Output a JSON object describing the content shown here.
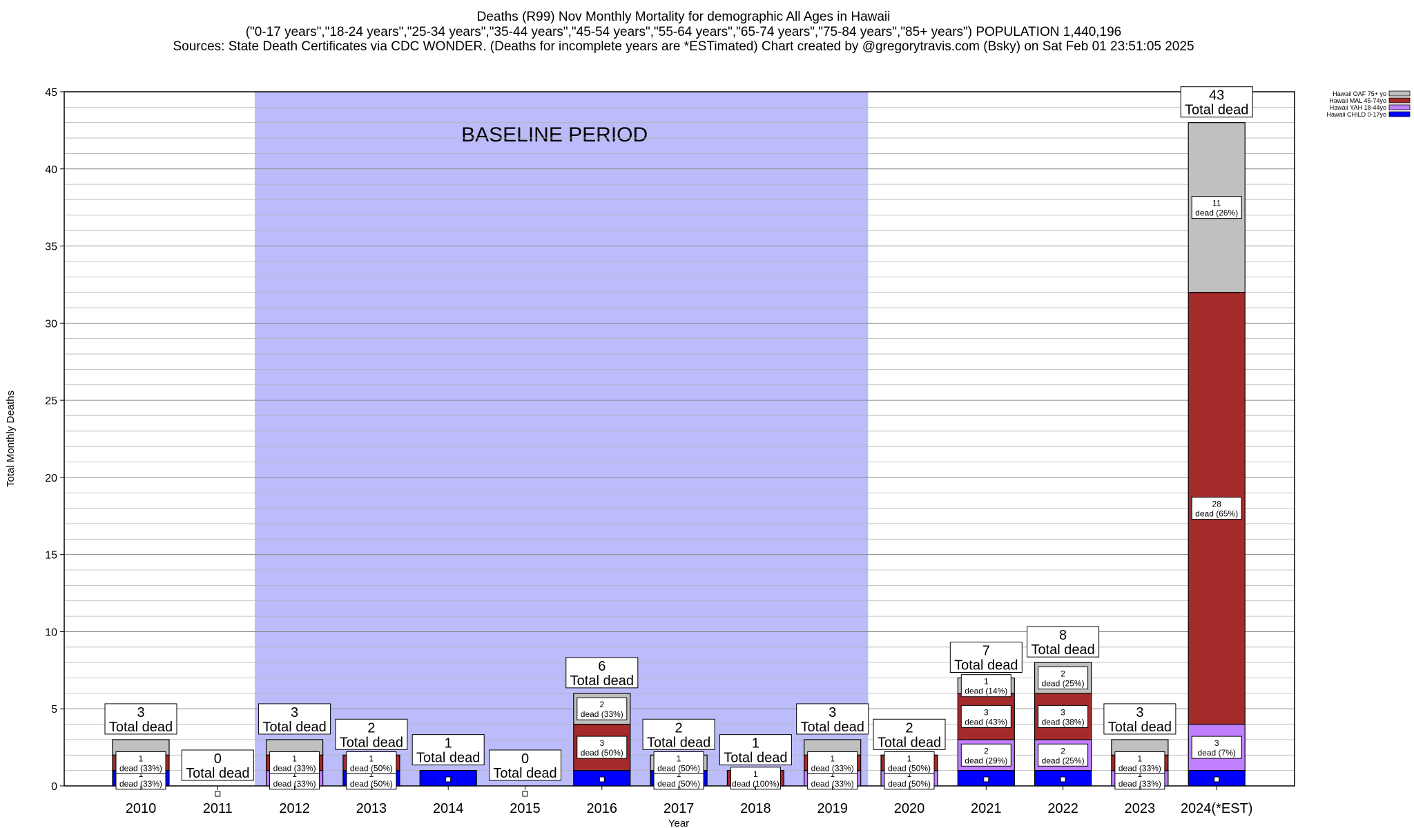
{
  "chart_data": {
    "type": "bar",
    "stacked": true,
    "title_lines": [
      "Deaths (R99) Nov Monthly Mortality for demographic All Ages in Hawaii",
      "(\"0-17 years\",\"18-24 years\",\"25-34 years\",\"35-44 years\",\"45-54 years\",\"55-64 years\",\"65-74 years\",\"75-84 years\",\"85+ years\") POPULATION 1,440,196",
      "Sources: State Death Certificates via CDC WONDER. (Deaths for incomplete years are *ESTimated)                 Chart created by @gregorytravis.com (Bsky) on Sat Feb 01 23:51:05 2025"
    ],
    "xlabel": "Year",
    "ylabel": "Total Monthly Deaths",
    "ylim": [
      0,
      45
    ],
    "yticks": [
      0,
      5,
      10,
      15,
      20,
      25,
      30,
      35,
      40,
      45
    ],
    "grid": true,
    "legend_position": "top-right",
    "baseline_label": "BASELINE PERIOD",
    "baseline_range": [
      "2012",
      "2019"
    ],
    "total_label_suffix": "Total dead",
    "segment_label_word": "dead",
    "categories": [
      "2010",
      "2011",
      "2012",
      "2013",
      "2014",
      "2015",
      "2016",
      "2017",
      "2018",
      "2019",
      "2020",
      "2021",
      "2022",
      "2023",
      "2024(*EST)"
    ],
    "totals": [
      3,
      0,
      3,
      2,
      1,
      0,
      6,
      2,
      1,
      3,
      2,
      7,
      8,
      3,
      43
    ],
    "series": [
      {
        "name": "Hawaii CHILD 0-17yo",
        "color": "#0000ff",
        "values": [
          1,
          0,
          0,
          1,
          1,
          0,
          1,
          1,
          0,
          0,
          0,
          1,
          1,
          0,
          1
        ],
        "pct": [
          "33%",
          "",
          "",
          "50%",
          "",
          "",
          "",
          "50%",
          "",
          "",
          "",
          "",
          "",
          "",
          ""
        ]
      },
      {
        "name": "Hawaii YAH 18-44yo",
        "color": "#c080ff",
        "values": [
          0,
          0,
          1,
          0,
          0,
          0,
          0,
          0,
          0,
          1,
          1,
          2,
          2,
          1,
          3
        ],
        "pct": [
          "",
          "",
          "33%",
          "",
          "",
          "",
          "",
          "",
          "",
          "33%",
          "50%",
          "29%",
          "25%",
          "33%",
          "7%"
        ]
      },
      {
        "name": "Hawaii MAL 45-74yo",
        "color": "#a52a2a",
        "values": [
          1,
          0,
          1,
          1,
          0,
          0,
          3,
          0,
          1,
          1,
          1,
          3,
          3,
          1,
          28
        ],
        "pct": [
          "33%",
          "",
          "33%",
          "50%",
          "",
          "",
          "50%",
          "",
          "100%",
          "33%",
          "50%",
          "43%",
          "38%",
          "33%",
          "65%"
        ]
      },
      {
        "name": "Hawaii OAF 75+ yo",
        "color": "#c0c0c0",
        "values": [
          1,
          0,
          1,
          0,
          0,
          0,
          2,
          1,
          0,
          1,
          0,
          1,
          2,
          1,
          11
        ],
        "pct": [
          "",
          "",
          "",
          "",
          "",
          "",
          "33%",
          "50%",
          "",
          "",
          "",
          "14%",
          "25%",
          "",
          "26%"
        ]
      }
    ],
    "legend_order": [
      "Hawaii OAF 75+ yo",
      "Hawaii MAL 45-74yo",
      "Hawaii YAH 18-44yo",
      "Hawaii CHILD 0-17yo"
    ]
  }
}
